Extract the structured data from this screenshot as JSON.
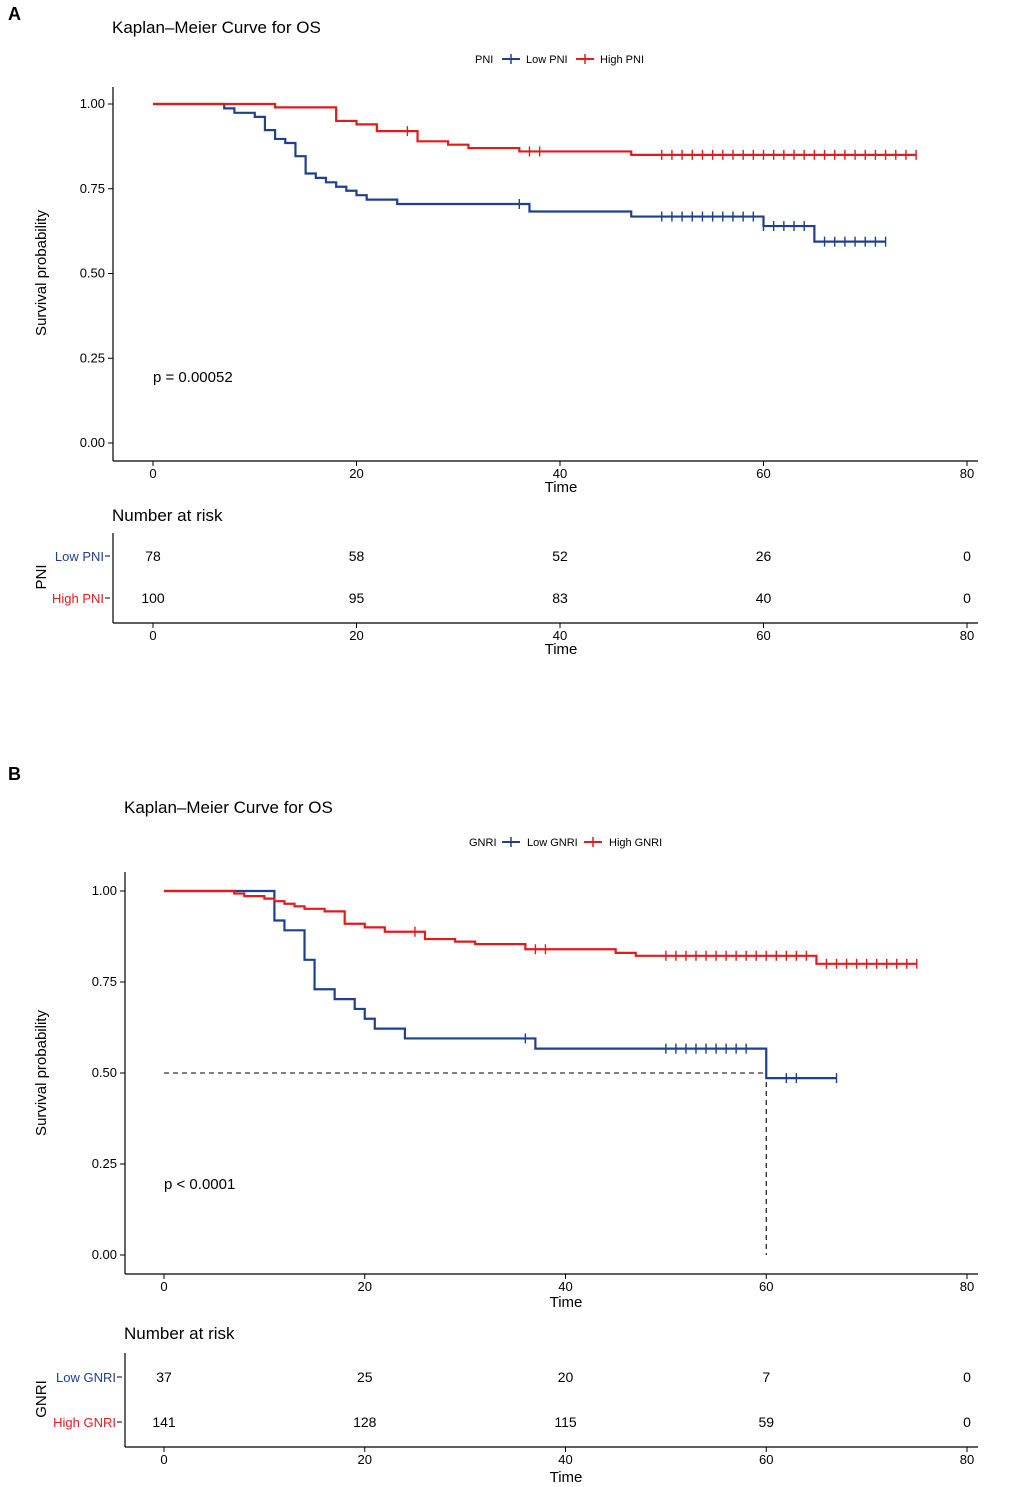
{
  "chart_data": [
    {
      "panel": "A",
      "type": "line",
      "title": "Kaplan–Meier Curve for OS",
      "legend_title": "PNI",
      "xlabel": "Time",
      "ylabel": "Survival probability",
      "xlim": [
        0,
        80
      ],
      "ylim": [
        0,
        1
      ],
      "xticks": [
        "0",
        "20",
        "40",
        "60",
        "80"
      ],
      "yticks": [
        "0.00",
        "0.25",
        "0.50",
        "0.75",
        "1.00"
      ],
      "pvalue": "p = 0.00052",
      "series": [
        {
          "name": "Low PNI",
          "color": "#1f3f8f",
          "steps": [
            [
              0,
              1
            ],
            [
              7,
              0.987
            ],
            [
              8,
              0.974
            ],
            [
              10,
              0.962
            ],
            [
              11,
              0.923
            ],
            [
              12,
              0.897
            ],
            [
              13,
              0.885
            ],
            [
              14,
              0.846
            ],
            [
              15,
              0.795
            ],
            [
              16,
              0.782
            ],
            [
              17,
              0.769
            ],
            [
              18,
              0.756
            ],
            [
              19,
              0.744
            ],
            [
              20,
              0.731
            ],
            [
              21,
              0.718
            ],
            [
              24,
              0.705
            ],
            [
              37,
              0.683
            ],
            [
              47,
              0.668
            ],
            [
              60,
              0.64
            ],
            [
              65,
              0.594
            ],
            [
              72,
              0.594
            ]
          ],
          "censor": [
            36,
            50,
            51,
            52,
            53,
            54,
            55,
            56,
            57,
            58,
            59,
            60,
            61,
            62,
            63,
            64,
            66,
            67,
            68,
            69,
            70,
            71,
            72
          ]
        },
        {
          "name": "High PNI",
          "color": "#e31a1c",
          "steps": [
            [
              0,
              1
            ],
            [
              12,
              0.99
            ],
            [
              18,
              0.95
            ],
            [
              20,
              0.94
            ],
            [
              22,
              0.92
            ],
            [
              26,
              0.89
            ],
            [
              29,
              0.88
            ],
            [
              31,
              0.87
            ],
            [
              36,
              0.86
            ],
            [
              47,
              0.85
            ],
            [
              75,
              0.85
            ]
          ],
          "censor": [
            25,
            37,
            38,
            50,
            51,
            52,
            53,
            54,
            55,
            56,
            57,
            58,
            59,
            60,
            61,
            62,
            63,
            64,
            65,
            66,
            67,
            68,
            69,
            70,
            71,
            72,
            73,
            74,
            75
          ]
        }
      ],
      "risk_table": {
        "title": "Number at risk",
        "ylabel": "PNI",
        "times": [
          0,
          20,
          40,
          60,
          80
        ],
        "rows": [
          {
            "label": "Low PNI",
            "color": "#1f3f8f",
            "values": [
              "78",
              "58",
              "52",
              "26",
              "0"
            ]
          },
          {
            "label": "High PNI",
            "color": "#e31a1c",
            "values": [
              "100",
              "95",
              "83",
              "40",
              "0"
            ]
          }
        ]
      }
    },
    {
      "panel": "B",
      "type": "line",
      "title": "Kaplan–Meier Curve for OS",
      "legend_title": "GNRI",
      "xlabel": "Time",
      "ylabel": "Survival probability",
      "xlim": [
        0,
        80
      ],
      "ylim": [
        0,
        1
      ],
      "xticks": [
        "0",
        "20",
        "40",
        "60",
        "80"
      ],
      "yticks": [
        "0.00",
        "0.25",
        "0.50",
        "0.75",
        "1.00"
      ],
      "pvalue": "p < 0.0001",
      "median_line": {
        "y": 0.5,
        "x": 60
      },
      "series": [
        {
          "name": "Low GNRI",
          "color": "#1f3f8f",
          "steps": [
            [
              0,
              1
            ],
            [
              11,
              0.919
            ],
            [
              12,
              0.892
            ],
            [
              14,
              0.811
            ],
            [
              15,
              0.73
            ],
            [
              17,
              0.703
            ],
            [
              19,
              0.676
            ],
            [
              20,
              0.649
            ],
            [
              21,
              0.622
            ],
            [
              24,
              0.595
            ],
            [
              37,
              0.567
            ],
            [
              60,
              0.486
            ],
            [
              67,
              0.486
            ]
          ],
          "censor": [
            36,
            50,
            51,
            52,
            53,
            54,
            55,
            56,
            57,
            58,
            62,
            63,
            67
          ]
        },
        {
          "name": "High GNRI",
          "color": "#e31a1c",
          "steps": [
            [
              0,
              1
            ],
            [
              7,
              0.993
            ],
            [
              8,
              0.986
            ],
            [
              10,
              0.979
            ],
            [
              11,
              0.972
            ],
            [
              12,
              0.965
            ],
            [
              13,
              0.958
            ],
            [
              14,
              0.951
            ],
            [
              16,
              0.944
            ],
            [
              18,
              0.91
            ],
            [
              20,
              0.9
            ],
            [
              22,
              0.888
            ],
            [
              26,
              0.868
            ],
            [
              29,
              0.861
            ],
            [
              31,
              0.854
            ],
            [
              36,
              0.84
            ],
            [
              45,
              0.83
            ],
            [
              47,
              0.822
            ],
            [
              65,
              0.8
            ],
            [
              75,
              0.8
            ]
          ],
          "censor": [
            25,
            37,
            38,
            50,
            51,
            52,
            53,
            54,
            55,
            56,
            57,
            58,
            59,
            60,
            61,
            62,
            63,
            64,
            66,
            67,
            68,
            69,
            70,
            71,
            72,
            73,
            74,
            75
          ]
        }
      ],
      "risk_table": {
        "title": "Number at risk",
        "ylabel": "GNRI",
        "times": [
          0,
          20,
          40,
          60,
          80
        ],
        "rows": [
          {
            "label": "Low GNRI",
            "color": "#1f3f8f",
            "values": [
              "37",
              "25",
              "20",
              "7",
              "0"
            ]
          },
          {
            "label": "High GNRI",
            "color": "#e31a1c",
            "values": [
              "141",
              "128",
              "115",
              "59",
              "0"
            ]
          }
        ]
      }
    }
  ]
}
